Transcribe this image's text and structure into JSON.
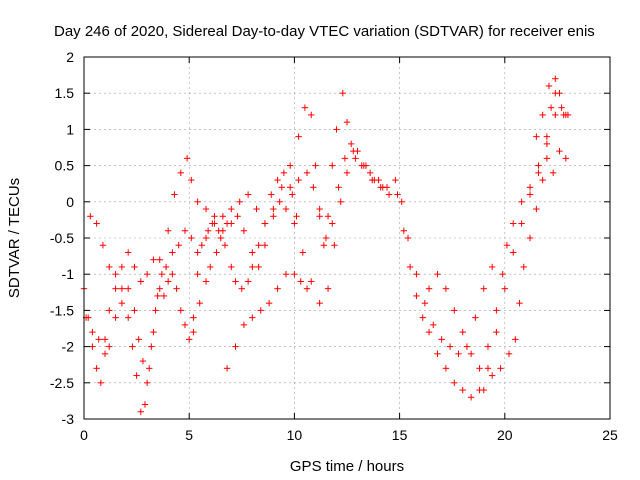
{
  "chart_data": {
    "type": "scatter",
    "title": "Day 246 of 2020, Sidereal Day-to-day VTEC variation (SDTVAR) for receiver enis",
    "xlabel": "GPS time / hours",
    "ylabel": "SDTVAR / TECUs",
    "xlim": [
      0,
      25
    ],
    "ylim": [
      -3,
      2
    ],
    "xticks": [
      "0",
      "5",
      "10",
      "15",
      "20",
      "25"
    ],
    "yticks": [
      "-3",
      "-2.5",
      "-2",
      "-1.5",
      "-1",
      "-0.5",
      "0",
      "0.5",
      "1",
      "1.5",
      "2"
    ],
    "xtick_values": [
      0,
      5,
      10,
      15,
      20,
      25
    ],
    "ytick_values": [
      -3,
      -2.5,
      -2,
      -1.5,
      -1,
      -0.5,
      0,
      0.5,
      1,
      1.5,
      2
    ],
    "grid": true,
    "marker": "+",
    "series": [
      {
        "color": "#ff0000",
        "arcs": [
          [
            [
              0.0,
              -1.2
            ],
            [
              0.2,
              -1.6
            ],
            [
              0.4,
              -2.0
            ],
            [
              0.6,
              -2.3
            ],
            [
              0.8,
              -2.5
            ],
            [
              1.0,
              -1.9
            ],
            [
              1.2,
              -1.5
            ],
            [
              1.5,
              -1.2
            ],
            [
              1.8,
              -0.9
            ],
            [
              2.1,
              -0.7
            ],
            [
              2.4,
              -0.9
            ],
            [
              2.7,
              -1.1
            ],
            [
              3.0,
              -1.0
            ],
            [
              3.3,
              -0.8
            ],
            [
              3.6,
              -0.8
            ],
            [
              4.0,
              -0.4
            ],
            [
              4.3,
              0.1
            ],
            [
              4.6,
              0.4
            ],
            [
              4.9,
              0.6
            ],
            [
              5.1,
              0.3
            ],
            [
              5.4,
              0.0
            ],
            [
              5.8,
              -0.1
            ],
            [
              6.2,
              -0.2
            ],
            [
              6.6,
              -0.2
            ],
            [
              7.0,
              -0.1
            ],
            [
              7.4,
              0.0
            ],
            [
              7.8,
              0.1
            ],
            [
              8.2,
              -0.1
            ],
            [
              8.6,
              -0.3
            ],
            [
              9.0,
              -0.1
            ],
            [
              9.4,
              0.2
            ],
            [
              9.8,
              0.5
            ],
            [
              10.2,
              0.9
            ],
            [
              10.5,
              1.3
            ],
            [
              10.8,
              1.2
            ],
            [
              11.0,
              0.5
            ],
            [
              11.2,
              -0.2
            ],
            [
              11.4,
              -0.6
            ],
            [
              11.6,
              -0.2
            ],
            [
              11.8,
              0.5
            ],
            [
              12.0,
              1.0
            ],
            [
              12.3,
              1.5
            ],
            [
              12.5,
              1.1
            ],
            [
              12.8,
              0.7
            ],
            [
              13.2,
              0.5
            ],
            [
              13.6,
              0.4
            ],
            [
              14.0,
              0.3
            ],
            [
              14.4,
              0.2
            ],
            [
              14.8,
              0.3
            ],
            [
              15.1,
              0.0
            ],
            [
              15.4,
              -0.5
            ],
            [
              15.8,
              -1.0
            ],
            [
              16.2,
              -1.4
            ],
            [
              16.6,
              -1.7
            ],
            [
              17.0,
              -1.9
            ],
            [
              17.4,
              -2.0
            ],
            [
              17.8,
              -2.1
            ],
            [
              18.2,
              -2.0
            ],
            [
              18.6,
              -1.6
            ],
            [
              19.0,
              -1.2
            ],
            [
              19.4,
              -0.9
            ]
          ],
          [
            [
              0.3,
              -0.2
            ],
            [
              0.6,
              -0.3
            ],
            [
              0.9,
              -0.6
            ],
            [
              1.2,
              -0.9
            ],
            [
              1.5,
              -1.0
            ],
            [
              1.8,
              -1.2
            ],
            [
              2.1,
              -1.6
            ],
            [
              2.3,
              -2.0
            ],
            [
              2.5,
              -2.4
            ],
            [
              2.7,
              -2.9
            ],
            [
              2.9,
              -2.8
            ],
            [
              3.1,
              -2.3
            ],
            [
              3.3,
              -1.8
            ],
            [
              3.5,
              -1.3
            ],
            [
              3.7,
              -1.0
            ],
            [
              3.9,
              -0.9
            ],
            [
              4.2,
              -0.7
            ],
            [
              4.5,
              -0.6
            ],
            [
              4.8,
              -0.4
            ],
            [
              5.1,
              -0.5
            ],
            [
              5.4,
              -0.7
            ],
            [
              5.8,
              -0.5
            ],
            [
              6.2,
              -0.3
            ],
            [
              6.6,
              -0.4
            ],
            [
              7.0,
              -0.3
            ],
            [
              7.3,
              -0.2
            ],
            [
              7.6,
              -0.4
            ],
            [
              8.0,
              -0.7
            ],
            [
              8.3,
              -0.9
            ],
            [
              8.6,
              -0.6
            ],
            [
              9.0,
              -0.2
            ],
            [
              9.3,
              0.0
            ],
            [
              9.6,
              -0.1
            ],
            [
              10.0,
              -0.3
            ],
            [
              10.4,
              -0.7
            ],
            [
              10.8,
              -1.1
            ],
            [
              11.2,
              -1.4
            ],
            [
              11.6,
              -1.2
            ],
            [
              11.9,
              -0.6
            ],
            [
              12.2,
              0.0
            ],
            [
              12.5,
              0.4
            ],
            [
              12.9,
              0.6
            ],
            [
              13.3,
              0.5
            ],
            [
              13.7,
              0.3
            ],
            [
              14.1,
              0.2
            ],
            [
              14.5,
              0.1
            ],
            [
              14.9,
              0.1
            ],
            [
              15.2,
              -0.4
            ],
            [
              15.5,
              -0.9
            ],
            [
              15.8,
              -1.3
            ],
            [
              16.1,
              -1.6
            ],
            [
              16.4,
              -1.8
            ],
            [
              16.8,
              -2.1
            ],
            [
              17.2,
              -2.3
            ],
            [
              17.6,
              -2.5
            ],
            [
              18.0,
              -2.6
            ],
            [
              18.4,
              -2.7
            ],
            [
              18.8,
              -2.6
            ],
            [
              19.2,
              -2.3
            ],
            [
              19.6,
              -1.8
            ],
            [
              20.0,
              -1.2
            ],
            [
              20.4,
              -0.7
            ],
            [
              20.8,
              -0.3
            ],
            [
              21.2,
              0.1
            ],
            [
              21.6,
              0.5
            ],
            [
              22.0,
              0.9
            ],
            [
              22.4,
              1.2
            ],
            [
              22.8,
              1.2
            ]
          ],
          [
            [
              0.1,
              -1.6
            ],
            [
              0.4,
              -1.8
            ],
            [
              0.7,
              -1.9
            ],
            [
              1.0,
              -2.1
            ],
            [
              1.2,
              -2.0
            ],
            [
              1.5,
              -1.6
            ],
            [
              1.8,
              -1.4
            ],
            [
              2.1,
              -1.2
            ],
            [
              2.4,
              -1.5
            ],
            [
              2.6,
              -1.9
            ],
            [
              2.8,
              -2.2
            ],
            [
              3.0,
              -2.5
            ],
            [
              3.2,
              -2.0
            ],
            [
              3.4,
              -1.5
            ],
            [
              3.6,
              -1.2
            ],
            [
              3.8,
              -1.3
            ],
            [
              4.0,
              -1.1
            ],
            [
              4.2,
              -1.0
            ],
            [
              4.4,
              -1.2
            ],
            [
              4.6,
              -1.5
            ],
            [
              4.8,
              -1.7
            ],
            [
              5.0,
              -1.9
            ],
            [
              5.2,
              -1.6
            ],
            [
              5.4,
              -1.0
            ],
            [
              5.6,
              -0.6
            ],
            [
              5.9,
              -0.4
            ],
            [
              6.1,
              -0.3
            ],
            [
              6.4,
              -0.4
            ],
            [
              6.7,
              -0.6
            ],
            [
              7.0,
              -0.9
            ],
            [
              7.2,
              -1.1
            ],
            [
              7.5,
              -1.2
            ],
            [
              7.8,
              -1.1
            ],
            [
              8.0,
              -0.9
            ],
            [
              8.3,
              -0.6
            ],
            [
              8.6,
              -0.3
            ],
            [
              8.9,
              0.1
            ],
            [
              9.2,
              0.3
            ],
            [
              9.5,
              0.4
            ],
            [
              9.8,
              0.2
            ],
            [
              10.1,
              -0.2
            ]
          ],
          [
            [
              6.8,
              -2.3
            ],
            [
              7.2,
              -2.0
            ],
            [
              7.6,
              -1.7
            ],
            [
              8.0,
              -1.6
            ],
            [
              8.4,
              -1.5
            ],
            [
              8.8,
              -1.4
            ],
            [
              9.2,
              -1.2
            ],
            [
              9.6,
              -1.0
            ],
            [
              10.0,
              -1.0
            ],
            [
              10.3,
              -1.1
            ],
            [
              10.6,
              -1.2
            ]
          ],
          [
            [
              9.9,
              0.1
            ],
            [
              10.2,
              0.3
            ],
            [
              10.6,
              0.4
            ],
            [
              10.9,
              0.2
            ],
            [
              11.2,
              -0.1
            ],
            [
              11.5,
              -0.5
            ],
            [
              11.8,
              -0.3
            ],
            [
              12.1,
              0.2
            ],
            [
              12.4,
              0.6
            ],
            [
              12.7,
              0.8
            ],
            [
              13.0,
              0.7
            ],
            [
              13.4,
              0.5
            ],
            [
              13.8,
              0.3
            ],
            [
              14.2,
              0.2
            ]
          ],
          [
            [
              16.4,
              -1.2
            ],
            [
              16.8,
              -1.0
            ],
            [
              17.2,
              -1.2
            ],
            [
              17.6,
              -1.5
            ],
            [
              18.0,
              -1.8
            ],
            [
              18.4,
              -2.1
            ],
            [
              18.8,
              -2.3
            ],
            [
              19.2,
              -2.0
            ],
            [
              19.6,
              -1.5
            ],
            [
              19.9,
              -1.0
            ],
            [
              20.1,
              -0.6
            ],
            [
              20.4,
              -0.3
            ],
            [
              20.8,
              0.0
            ],
            [
              21.2,
              0.2
            ],
            [
              21.6,
              0.4
            ],
            [
              22.0,
              0.6
            ],
            [
              22.3,
              0.4
            ],
            [
              22.6,
              0.7
            ],
            [
              22.9,
              0.6
            ]
          ],
          [
            [
              19.0,
              -2.6
            ],
            [
              19.4,
              -2.4
            ],
            [
              19.8,
              -2.3
            ],
            [
              20.2,
              -2.1
            ],
            [
              20.5,
              -1.9
            ],
            [
              20.7,
              -1.4
            ],
            [
              20.9,
              -0.9
            ],
            [
              21.2,
              -0.5
            ],
            [
              21.5,
              -0.1
            ],
            [
              21.8,
              0.3
            ],
            [
              22.0,
              0.8
            ],
            [
              22.2,
              1.3
            ],
            [
              22.4,
              1.7
            ],
            [
              22.6,
              1.5
            ],
            [
              22.9,
              1.2
            ]
          ],
          [
            [
              21.5,
              0.9
            ],
            [
              21.8,
              1.2
            ],
            [
              22.1,
              1.6
            ],
            [
              22.4,
              1.5
            ],
            [
              22.7,
              1.3
            ],
            [
              23.0,
              1.2
            ]
          ],
          [
            [
              5.2,
              -1.8
            ],
            [
              5.5,
              -1.4
            ],
            [
              5.8,
              -1.1
            ],
            [
              6.0,
              -0.9
            ],
            [
              6.3,
              -0.7
            ],
            [
              6.5,
              -0.5
            ],
            [
              6.8,
              -0.3
            ]
          ]
        ]
      }
    ]
  }
}
